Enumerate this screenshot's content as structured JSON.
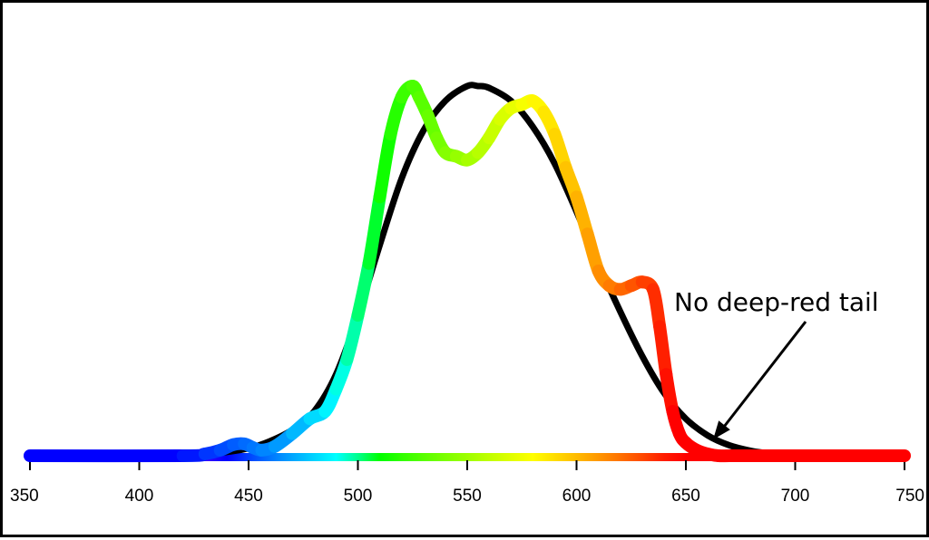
{
  "chart_data": {
    "type": "line",
    "title": "",
    "xlabel": "",
    "ylabel": "",
    "xlim": [
      350,
      750
    ],
    "ylim": [
      0,
      1
    ],
    "x_ticks": [
      "350",
      "400",
      "450",
      "500",
      "550",
      "600",
      "650",
      "700",
      "750"
    ],
    "grid": false,
    "x_axis_style": "visible-spectrum gradient bar",
    "series": [
      {
        "style": "black reference curve",
        "color": "#000000",
        "x": [
          350,
          420,
          430,
          440,
          450,
          460,
          470,
          480,
          490,
          500,
          510,
          520,
          530,
          540,
          550,
          555,
          560,
          570,
          580,
          590,
          600,
          610,
          620,
          630,
          640,
          650,
          660,
          670,
          680,
          690,
          700,
          720,
          750
        ],
        "y": [
          0.0,
          0.0,
          0.003,
          0.01,
          0.02,
          0.04,
          0.07,
          0.12,
          0.22,
          0.38,
          0.57,
          0.75,
          0.88,
          0.96,
          1.0,
          1.0,
          0.995,
          0.96,
          0.89,
          0.79,
          0.66,
          0.52,
          0.39,
          0.27,
          0.17,
          0.1,
          0.055,
          0.028,
          0.013,
          0.005,
          0.0,
          0.0,
          0.0
        ]
      },
      {
        "style": "spectral-colored LED spectrum",
        "x": [
          350,
          420,
          430,
          437,
          443,
          448,
          452,
          456,
          462,
          470,
          478,
          485,
          490,
          495,
          500,
          505,
          510,
          515,
          520,
          525,
          528,
          532,
          536,
          540,
          545,
          550,
          555,
          560,
          565,
          570,
          575,
          580,
          585,
          590,
          595,
          600,
          605,
          610,
          615,
          620,
          625,
          630,
          635,
          638,
          641,
          644,
          647,
          650,
          655,
          660,
          665,
          670,
          680,
          690,
          700,
          720,
          750
        ],
        "y": [
          0.0,
          0.0,
          0.005,
          0.015,
          0.03,
          0.032,
          0.022,
          0.015,
          0.025,
          0.06,
          0.1,
          0.12,
          0.18,
          0.26,
          0.38,
          0.52,
          0.7,
          0.87,
          0.97,
          1.0,
          0.97,
          0.92,
          0.86,
          0.82,
          0.81,
          0.8,
          0.82,
          0.86,
          0.91,
          0.94,
          0.95,
          0.96,
          0.93,
          0.87,
          0.78,
          0.7,
          0.6,
          0.5,
          0.46,
          0.45,
          0.46,
          0.47,
          0.45,
          0.35,
          0.22,
          0.12,
          0.06,
          0.035,
          0.015,
          0.005,
          0.0,
          0.0,
          0.0,
          0.0,
          0.0,
          0.0,
          0.0
        ]
      }
    ],
    "annotations": [
      {
        "text": "No deep-red tail",
        "points_to_x": 665
      }
    ]
  }
}
